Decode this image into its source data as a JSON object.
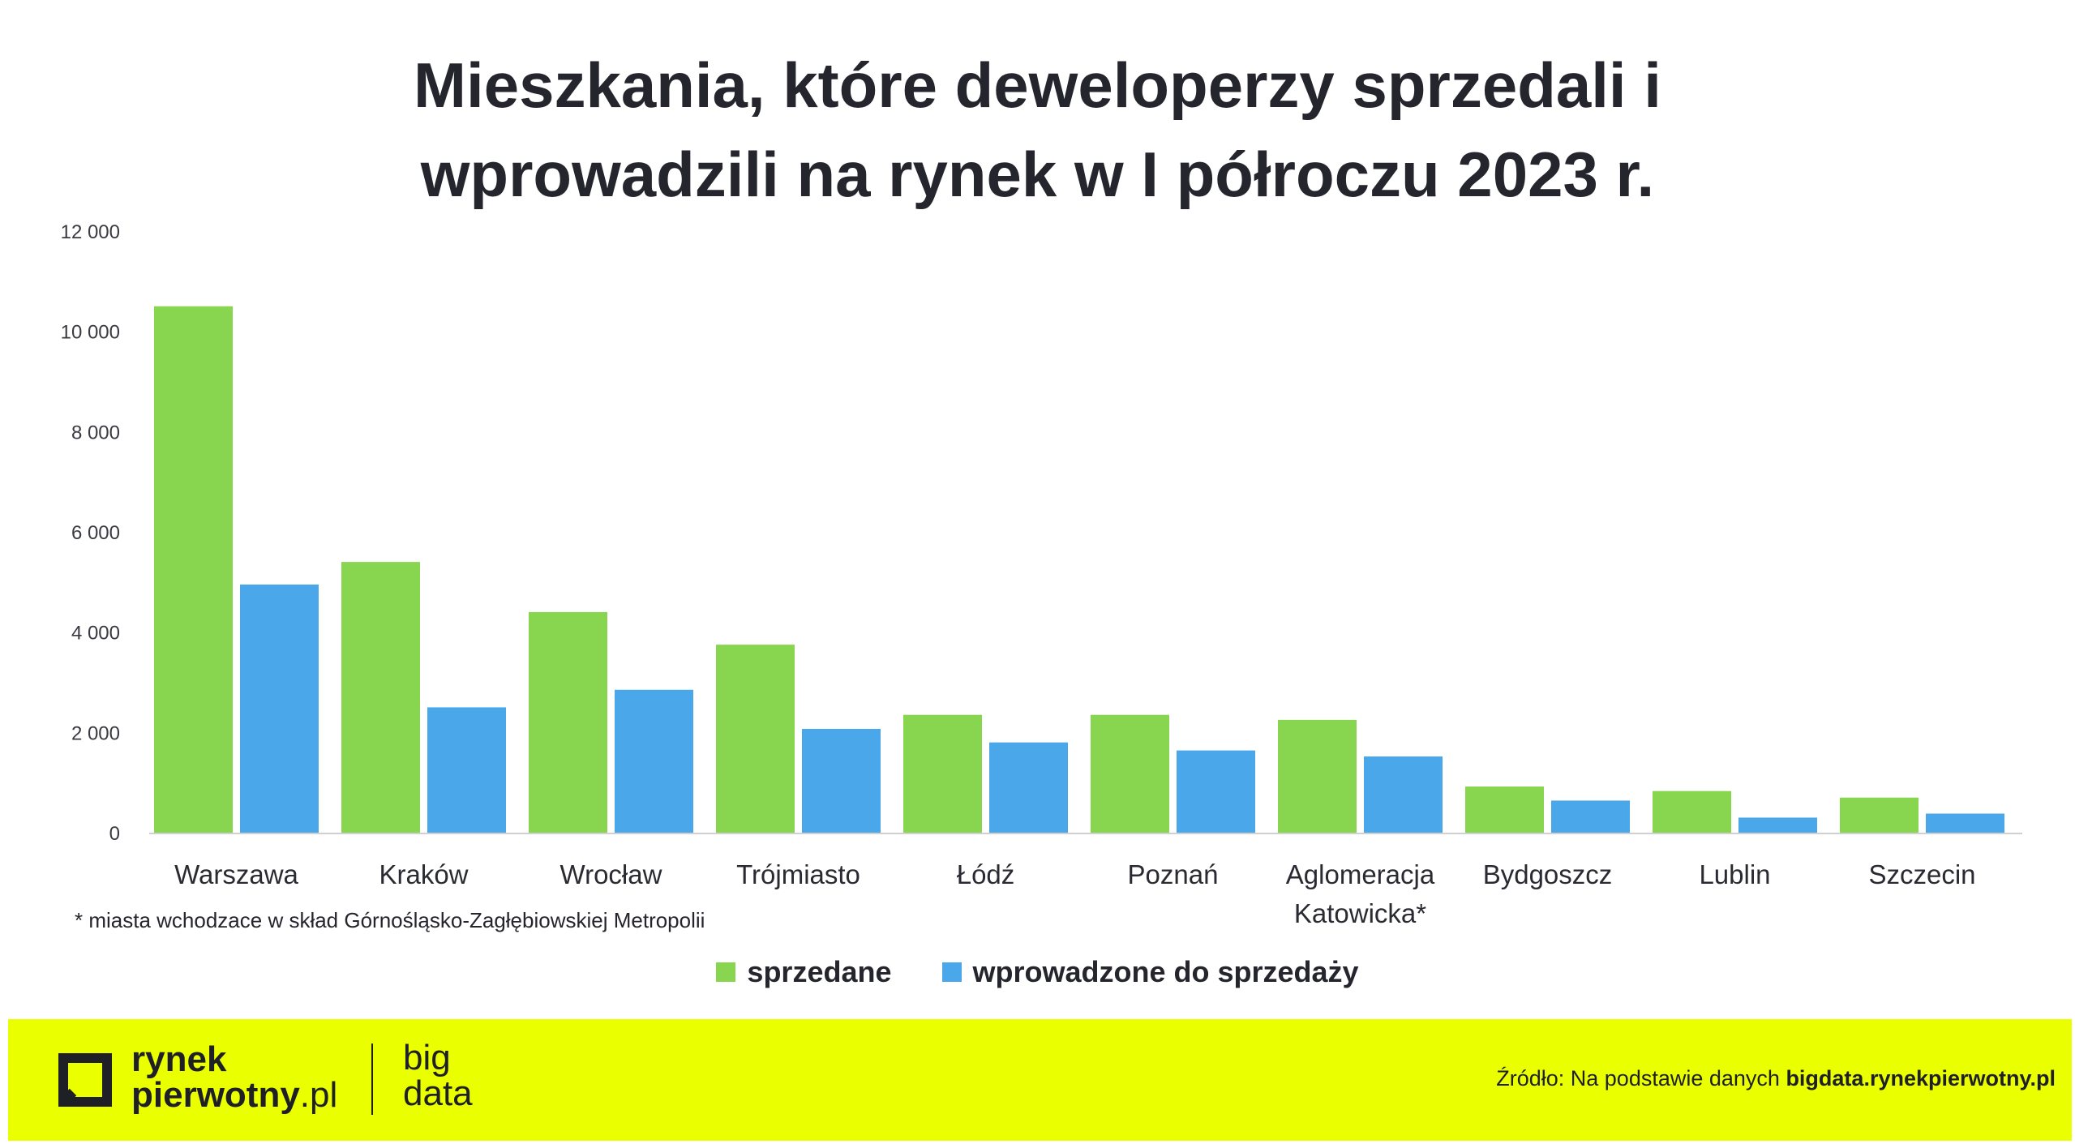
{
  "title": {
    "line1": "Mieszkania, które deweloperzy sprzedali i",
    "line2": "wprowadzili na rynek w I półroczu 2023 r."
  },
  "chart_data": {
    "type": "bar",
    "categories": [
      "Warszawa",
      "Kraków",
      "Wrocław",
      "Trójmiasto",
      "Łódź",
      "Poznań",
      "Aglomeracja Katowicka*",
      "Bydgoszcz",
      "Lublin",
      "Szczecin"
    ],
    "category_lines": [
      [
        "Warszawa"
      ],
      [
        "Kraków"
      ],
      [
        "Wrocław"
      ],
      [
        "Trójmiasto"
      ],
      [
        "Łódź"
      ],
      [
        "Poznań"
      ],
      [
        "Aglomeracja",
        "Katowicka*"
      ],
      [
        "Bydgoszcz"
      ],
      [
        "Lublin"
      ],
      [
        "Szczecin"
      ]
    ],
    "series": [
      {
        "name": "sprzedane",
        "color": "#88d64f",
        "values": [
          10500,
          5400,
          4400,
          3750,
          2350,
          2350,
          2250,
          920,
          830,
          700
        ]
      },
      {
        "name": "wprowadzone do sprzedaży",
        "color": "#4aa8ea",
        "values": [
          4950,
          2500,
          2850,
          2070,
          1800,
          1640,
          1520,
          640,
          300,
          380
        ]
      }
    ],
    "ylim": [
      0,
      12000
    ],
    "yticks": [
      0,
      2000,
      4000,
      6000,
      8000,
      10000,
      12000
    ],
    "ytick_labels": [
      "0",
      "2 000",
      "4 000",
      "6 000",
      "8 000",
      "10 000",
      "12 000"
    ],
    "grid": false,
    "legend": "bottom-center"
  },
  "footnote": "* miasta wchodzace w skład Górnośląsko-Zagłębiowskiej Metropolii",
  "footer": {
    "logo_line1": "rynek",
    "logo_line2_bold": "pierwotny",
    "logo_line2_light": ".pl",
    "bigdata_line1": "big",
    "bigdata_line2": "data",
    "source_prefix": "Źródło: Na podstawie danych ",
    "source_link": "bigdata.rynekpierwotny.pl",
    "background": "#eaff00"
  }
}
